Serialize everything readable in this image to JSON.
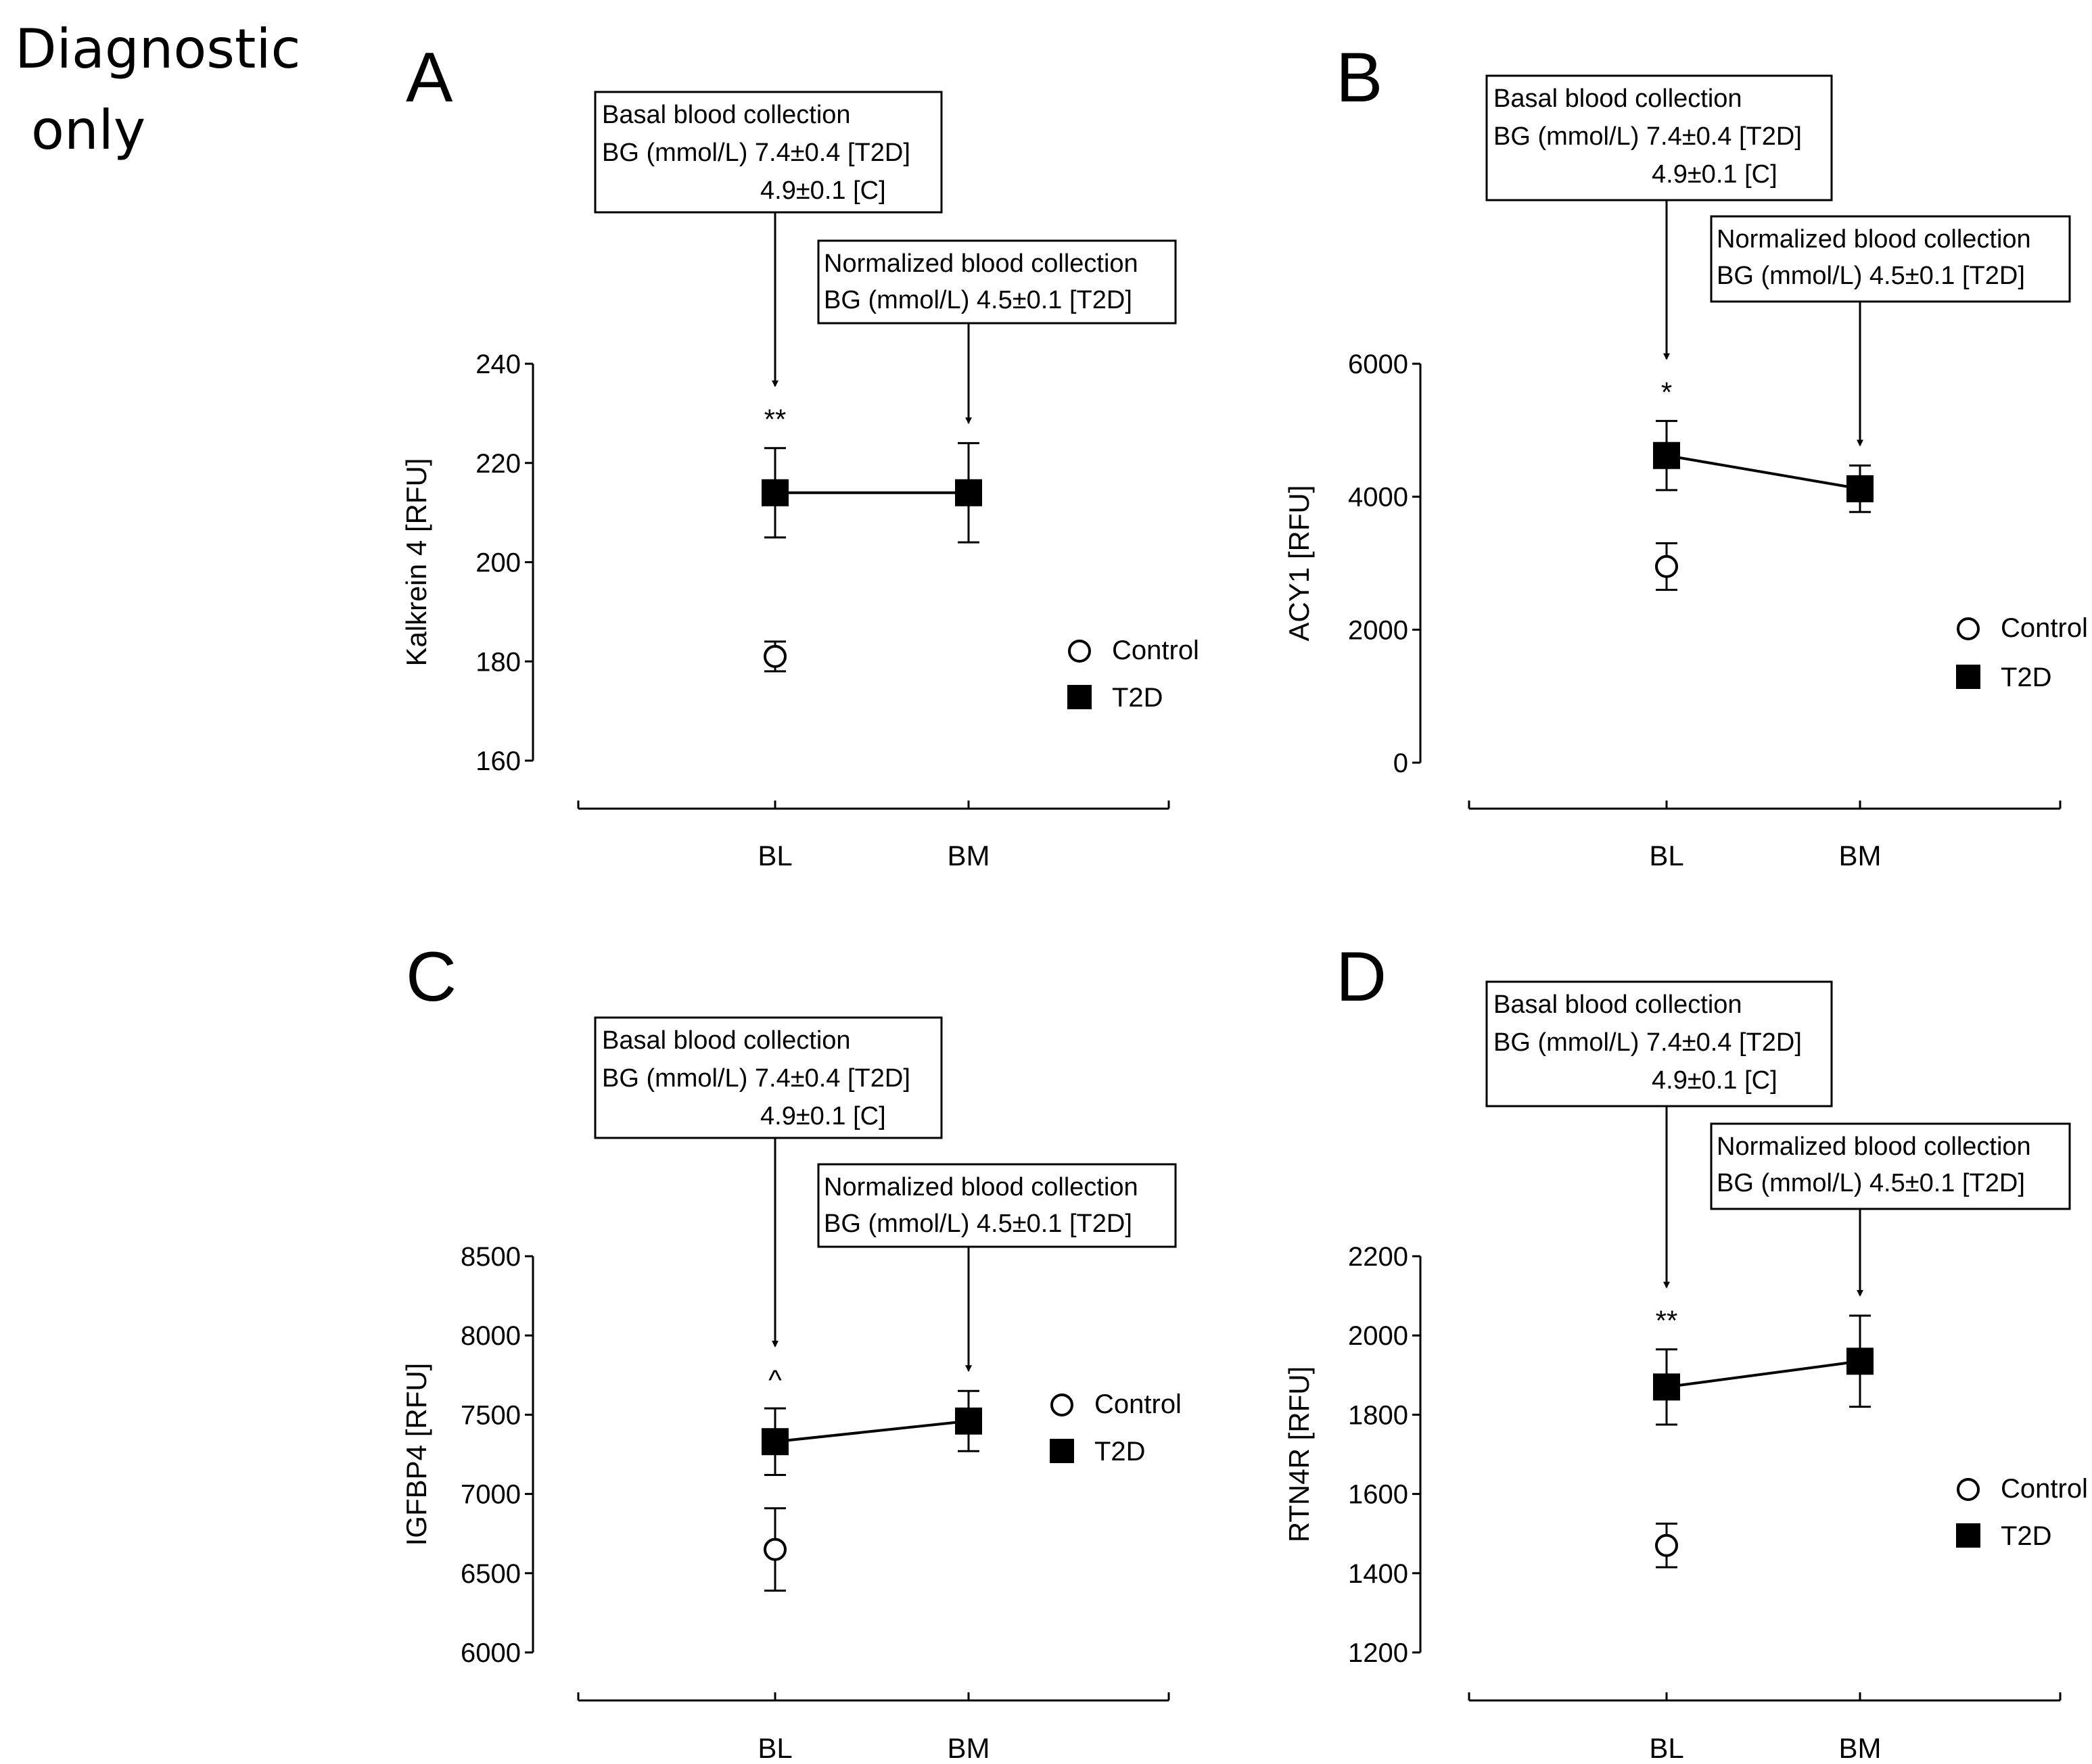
{
  "corner_note": {
    "line1": "Diagnostic",
    "line2": "only"
  },
  "legend_labels": {
    "control": "Control",
    "t2d": "T2D"
  },
  "chart_data": [
    {
      "panel": "A",
      "type": "scatter",
      "ylabel": "Kalkrein 4 [RFU]",
      "categories": [
        "BL",
        "BM"
      ],
      "ylim": [
        160,
        240
      ],
      "yticks": [
        160,
        180,
        200,
        220,
        240
      ],
      "series": [
        {
          "name": "Control",
          "marker": "open-circle",
          "points": [
            {
              "x": "BL",
              "y": 181,
              "err": 3
            }
          ]
        },
        {
          "name": "T2D",
          "marker": "filled-square",
          "connected": true,
          "points": [
            {
              "x": "BL",
              "y": 214,
              "err": 9
            },
            {
              "x": "BM",
              "y": 214,
              "err": 10
            }
          ]
        }
      ],
      "significance": [
        {
          "x": "BL",
          "label": "**"
        }
      ],
      "annotations": {
        "basal": {
          "line1": "Basal blood collection",
          "line2": "BG (mmol/L) 7.4±0.4 [T2D]",
          "line3": "4.9±0.1 [C]"
        },
        "normalized": {
          "line1": "Normalized blood collection",
          "line2": "BG (mmol/L) 4.5±0.1 [T2D]"
        }
      }
    },
    {
      "panel": "B",
      "type": "scatter",
      "ylabel": "ACY1 [RFU]",
      "categories": [
        "BL",
        "BM"
      ],
      "ylim": [
        0,
        6000
      ],
      "yticks": [
        0,
        2000,
        4000,
        6000
      ],
      "series": [
        {
          "name": "Control",
          "marker": "open-circle",
          "points": [
            {
              "x": "BL",
              "y": 2950,
              "err": 350
            }
          ]
        },
        {
          "name": "T2D",
          "marker": "filled-square",
          "connected": true,
          "points": [
            {
              "x": "BL",
              "y": 4620,
              "err": 520
            },
            {
              "x": "BM",
              "y": 4120,
              "err": 350
            }
          ]
        }
      ],
      "significance": [
        {
          "x": "BL",
          "label": "*"
        }
      ],
      "annotations": {
        "basal": {
          "line1": "Basal blood collection",
          "line2": "BG (mmol/L) 7.4±0.4 [T2D]",
          "line3": "4.9±0.1 [C]"
        },
        "normalized": {
          "line1": "Normalized blood collection",
          "line2": "BG (mmol/L) 4.5±0.1 [T2D]"
        }
      }
    },
    {
      "panel": "C",
      "type": "scatter",
      "ylabel": "IGFBP4 [RFU]",
      "categories": [
        "BL",
        "BM"
      ],
      "ylim": [
        6000,
        8500
      ],
      "yticks": [
        6000,
        6500,
        7000,
        7500,
        8000,
        8500
      ],
      "series": [
        {
          "name": "Control",
          "marker": "open-circle",
          "points": [
            {
              "x": "BL",
              "y": 6650,
              "err": 260
            }
          ]
        },
        {
          "name": "T2D",
          "marker": "filled-square",
          "connected": true,
          "points": [
            {
              "x": "BL",
              "y": 7330,
              "err": 210
            },
            {
              "x": "BM",
              "y": 7460,
              "err": 190
            }
          ]
        }
      ],
      "significance": [
        {
          "x": "BL",
          "label": "^"
        }
      ],
      "annotations": {
        "basal": {
          "line1": "Basal blood collection",
          "line2": "BG (mmol/L) 7.4±0.4 [T2D]",
          "line3": "4.9±0.1 [C]"
        },
        "normalized": {
          "line1": "Normalized blood collection",
          "line2": "BG (mmol/L) 4.5±0.1 [T2D]"
        }
      }
    },
    {
      "panel": "D",
      "type": "scatter",
      "ylabel": "RTN4R [RFU]",
      "categories": [
        "BL",
        "BM"
      ],
      "ylim": [
        1200,
        2200
      ],
      "yticks": [
        1200,
        1400,
        1600,
        1800,
        2000,
        2200
      ],
      "series": [
        {
          "name": "Control",
          "marker": "open-circle",
          "points": [
            {
              "x": "BL",
              "y": 1470,
              "err": 55
            }
          ]
        },
        {
          "name": "T2D",
          "marker": "filled-square",
          "connected": true,
          "points": [
            {
              "x": "BL",
              "y": 1870,
              "err": 95
            },
            {
              "x": "BM",
              "y": 1935,
              "err": 115
            }
          ]
        }
      ],
      "significance": [
        {
          "x": "BL",
          "label": "**"
        }
      ],
      "annotations": {
        "basal": {
          "line1": "Basal blood collection",
          "line2": "BG (mmol/L) 7.4±0.4 [T2D]",
          "line3": "4.9±0.1 [C]"
        },
        "normalized": {
          "line1": "Normalized blood collection",
          "line2": "BG (mmol/L) 4.5±0.1 [T2D]"
        }
      }
    }
  ]
}
